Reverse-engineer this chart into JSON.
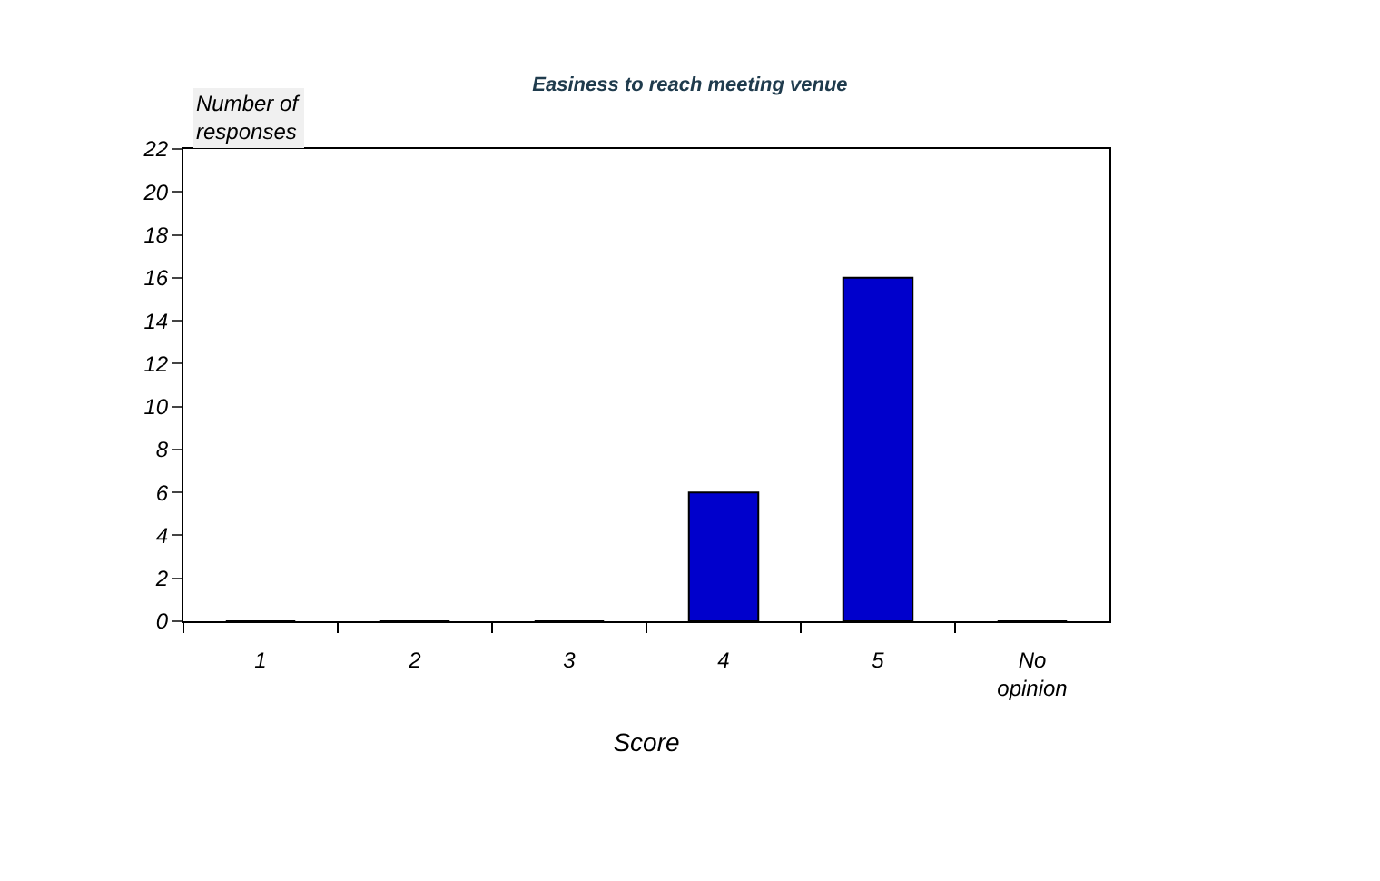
{
  "chart_data": {
    "type": "bar",
    "title": "Easiness to reach meeting venue",
    "xlabel": "Score",
    "ylabel": "Number of responses",
    "categories": [
      "1",
      "2",
      "3",
      "4",
      "5",
      "No opinion"
    ],
    "values": [
      0,
      0,
      0,
      6,
      16,
      0
    ],
    "color": "#0000cc",
    "ylim": [
      0,
      22
    ],
    "yticks": [
      0,
      2,
      4,
      6,
      8,
      10,
      12,
      14,
      16,
      18,
      20,
      22
    ],
    "grid": false
  }
}
